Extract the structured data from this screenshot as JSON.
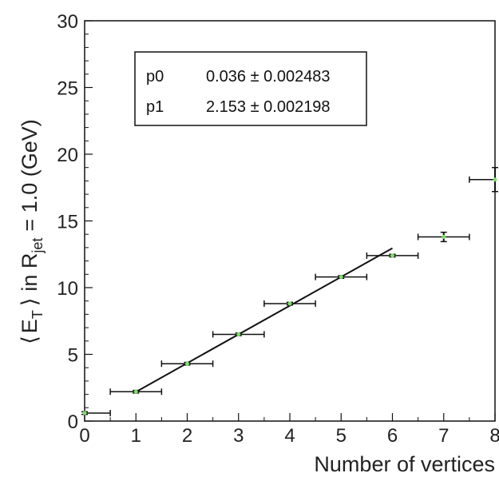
{
  "chart_data": {
    "type": "scatter",
    "xlabel": "Number of vertices",
    "ylabel_parts": {
      "open_bracket": "⟨",
      "quantity": "E",
      "quantity_sub": "T",
      "close_bracket": "⟩",
      "in_text": "in R",
      "region_sub": "jet",
      "suffix": "= 1.0 (GeV)"
    },
    "xlim": [
      0,
      8
    ],
    "ylim": [
      0,
      30
    ],
    "x_ticks": [
      0,
      1,
      2,
      3,
      4,
      5,
      6,
      7,
      8
    ],
    "y_ticks": [
      0,
      5,
      10,
      15,
      20,
      25,
      30
    ],
    "grid": false,
    "points": [
      {
        "x": 0,
        "y": 0.6,
        "xerr": 0.5,
        "yerr": 0.1
      },
      {
        "x": 1,
        "y": 2.2,
        "xerr": 0.5,
        "yerr": 0.1
      },
      {
        "x": 2,
        "y": 4.3,
        "xerr": 0.5,
        "yerr": 0.1
      },
      {
        "x": 3,
        "y": 6.5,
        "xerr": 0.5,
        "yerr": 0.1
      },
      {
        "x": 4,
        "y": 8.8,
        "xerr": 0.5,
        "yerr": 0.1
      },
      {
        "x": 5,
        "y": 10.8,
        "xerr": 0.5,
        "yerr": 0.1
      },
      {
        "x": 6,
        "y": 12.4,
        "xerr": 0.5,
        "yerr": 0.1
      },
      {
        "x": 7,
        "y": 13.8,
        "xerr": 0.5,
        "yerr": 0.35
      },
      {
        "x": 8,
        "y": 18.1,
        "xerr": 0.5,
        "yerr": 0.9
      }
    ],
    "fit": {
      "x_range": [
        1,
        6
      ],
      "p0": 0.036,
      "p1": 2.153,
      "params": [
        {
          "name": "p0",
          "value": "0.036 ± 0.002483"
        },
        {
          "name": "p1",
          "value": "2.153 ± 0.002198"
        }
      ]
    },
    "colors": {
      "marker": "#7ddc6a",
      "line": "#111111"
    }
  }
}
